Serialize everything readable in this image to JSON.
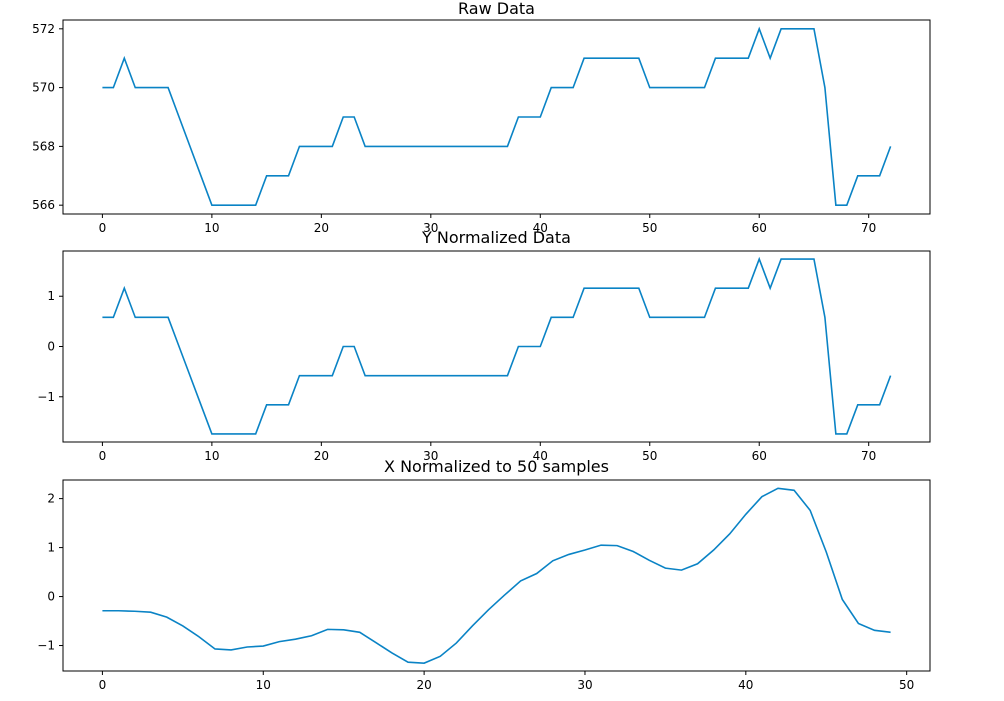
{
  "colors": {
    "line": "#0a83c5",
    "axes": "#000000",
    "background": "#ffffff"
  },
  "chart_data": [
    {
      "type": "line",
      "title": "Raw Data",
      "xlabel": "",
      "ylabel": "",
      "grid": false,
      "xlim": [
        -3.6,
        75.6
      ],
      "ylim": [
        565.7,
        572.3
      ],
      "xticks": [
        0,
        10,
        20,
        30,
        40,
        50,
        60,
        70
      ],
      "yticks": [
        566,
        568,
        570,
        572
      ],
      "x": [
        0,
        1,
        2,
        3,
        4,
        5,
        6,
        7,
        8,
        9,
        10,
        11,
        12,
        13,
        14,
        15,
        16,
        17,
        18,
        19,
        20,
        21,
        22,
        23,
        24,
        25,
        26,
        27,
        28,
        29,
        30,
        31,
        32,
        33,
        34,
        35,
        36,
        37,
        38,
        39,
        40,
        41,
        42,
        43,
        44,
        45,
        46,
        47,
        48,
        49,
        50,
        51,
        52,
        53,
        54,
        55,
        56,
        57,
        58,
        59,
        60,
        61,
        62,
        63,
        64,
        65,
        66,
        67,
        68,
        69,
        70,
        71,
        72
      ],
      "series": [
        {
          "values": [
            570,
            570,
            571,
            570,
            570,
            570,
            570,
            569,
            568,
            567,
            566,
            566,
            566,
            566,
            566,
            567,
            567,
            567,
            568,
            568,
            568,
            568,
            569,
            569,
            568,
            568,
            568,
            568,
            568,
            568,
            568,
            568,
            568,
            568,
            568,
            568,
            568,
            568,
            569,
            569,
            569,
            570,
            570,
            570,
            571,
            571,
            571,
            571,
            571,
            571,
            570,
            570,
            570,
            570,
            570,
            570,
            571,
            571,
            571,
            571,
            572,
            571,
            572,
            572,
            572,
            572,
            570,
            566,
            566,
            567,
            567,
            567,
            568
          ]
        }
      ]
    },
    {
      "type": "line",
      "title": "Y Normalized Data",
      "xlabel": "",
      "ylabel": "",
      "grid": false,
      "xlim": [
        -3.6,
        75.6
      ],
      "ylim": [
        -1.9,
        1.9
      ],
      "xticks": [
        0,
        10,
        20,
        30,
        40,
        50,
        60,
        70
      ],
      "yticks": [
        -1,
        0,
        1
      ],
      "ytick_labels": [
        "−1",
        "0",
        "1"
      ],
      "x": [
        0,
        1,
        2,
        3,
        4,
        5,
        6,
        7,
        8,
        9,
        10,
        11,
        12,
        13,
        14,
        15,
        16,
        17,
        18,
        19,
        20,
        21,
        22,
        23,
        24,
        25,
        26,
        27,
        28,
        29,
        30,
        31,
        32,
        33,
        34,
        35,
        36,
        37,
        38,
        39,
        40,
        41,
        42,
        43,
        44,
        45,
        46,
        47,
        48,
        49,
        50,
        51,
        52,
        53,
        54,
        55,
        56,
        57,
        58,
        59,
        60,
        61,
        62,
        63,
        64,
        65,
        66,
        67,
        68,
        69,
        70,
        71,
        72
      ],
      "series": [
        {
          "values": [
            0.58,
            0.58,
            1.16,
            0.58,
            0.58,
            0.58,
            0.58,
            0.0,
            -0.58,
            -1.16,
            -1.74,
            -1.74,
            -1.74,
            -1.74,
            -1.74,
            -1.16,
            -1.16,
            -1.16,
            -0.58,
            -0.58,
            -0.58,
            -0.58,
            0.0,
            0.0,
            -0.58,
            -0.58,
            -0.58,
            -0.58,
            -0.58,
            -0.58,
            -0.58,
            -0.58,
            -0.58,
            -0.58,
            -0.58,
            -0.58,
            -0.58,
            -0.58,
            0.0,
            0.0,
            0.0,
            0.58,
            0.58,
            0.58,
            1.16,
            1.16,
            1.16,
            1.16,
            1.16,
            1.16,
            0.58,
            0.58,
            0.58,
            0.58,
            0.58,
            0.58,
            1.16,
            1.16,
            1.16,
            1.16,
            1.74,
            1.16,
            1.74,
            1.74,
            1.74,
            1.74,
            0.58,
            -1.74,
            -1.74,
            -1.16,
            -1.16,
            -1.16,
            -0.58
          ]
        }
      ]
    },
    {
      "type": "line",
      "title": "X Normalized to 50 samples",
      "xlabel": "",
      "ylabel": "",
      "grid": false,
      "xlim": [
        -2.45,
        51.45
      ],
      "ylim": [
        -1.52,
        2.38
      ],
      "xticks": [
        0,
        10,
        20,
        30,
        40,
        50
      ],
      "yticks": [
        -1,
        0,
        1,
        2
      ],
      "ytick_labels": [
        "−1",
        "0",
        "1",
        "2"
      ],
      "x": [
        0,
        1,
        2,
        3,
        4,
        5,
        6,
        7,
        8,
        9,
        10,
        11,
        12,
        13,
        14,
        15,
        16,
        17,
        18,
        19,
        20,
        21,
        22,
        23,
        24,
        25,
        26,
        27,
        28,
        29,
        30,
        31,
        32,
        33,
        34,
        35,
        36,
        37,
        38,
        39,
        40,
        41,
        42,
        43,
        44,
        45,
        46,
        47,
        48,
        49
      ],
      "series": [
        {
          "values": [
            -0.29,
            -0.29,
            -0.3,
            -0.32,
            -0.42,
            -0.6,
            -0.82,
            -1.07,
            -1.09,
            -1.03,
            -1.01,
            -0.92,
            -0.87,
            -0.8,
            -0.67,
            -0.68,
            -0.73,
            -0.94,
            -1.15,
            -1.34,
            -1.36,
            -1.22,
            -0.95,
            -0.6,
            -0.27,
            0.03,
            0.32,
            0.47,
            0.73,
            0.86,
            0.95,
            1.05,
            1.04,
            0.92,
            0.74,
            0.58,
            0.54,
            0.67,
            0.95,
            1.28,
            1.68,
            2.04,
            2.21,
            2.17,
            1.76,
            0.91,
            -0.06,
            -0.55,
            -0.69,
            -0.73
          ]
        }
      ]
    }
  ]
}
